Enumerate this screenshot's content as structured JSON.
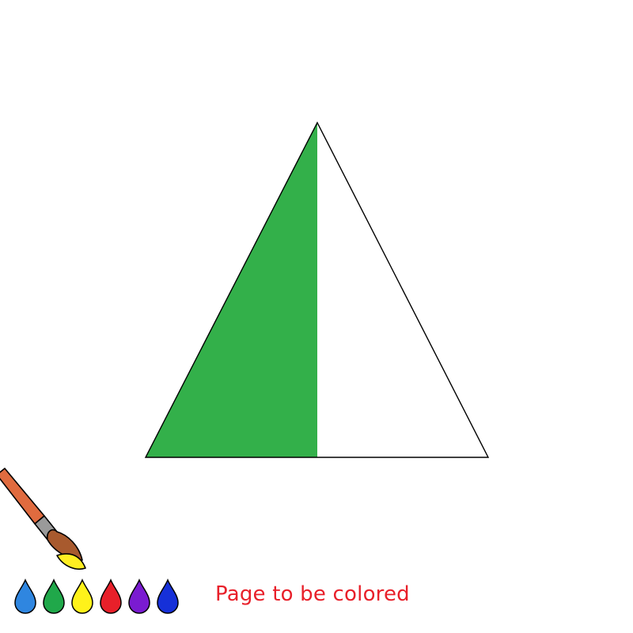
{
  "caption": "Page to be colored",
  "colors": {
    "left_half_fill": "#33b04a",
    "right_half_fill": "#ffffff",
    "outline": "#000000",
    "caption_text": "#e8202a",
    "brush_handle": "#e06b3f",
    "brush_ferrule": "#9a9a9a",
    "brush_tip": "#a85a2e",
    "brush_paint": "#ffee22"
  },
  "drops": [
    {
      "name": "light-blue-drop",
      "color": "#2f86e0"
    },
    {
      "name": "green-drop",
      "color": "#20a84a"
    },
    {
      "name": "yellow-drop",
      "color": "#fff21a"
    },
    {
      "name": "red-drop",
      "color": "#e8202a"
    },
    {
      "name": "purple-drop",
      "color": "#7a1bd1"
    },
    {
      "name": "dark-blue-drop",
      "color": "#1630d8"
    }
  ],
  "icons": {
    "brush": "paint-brush-icon",
    "drops": "paint-drop-icon"
  }
}
